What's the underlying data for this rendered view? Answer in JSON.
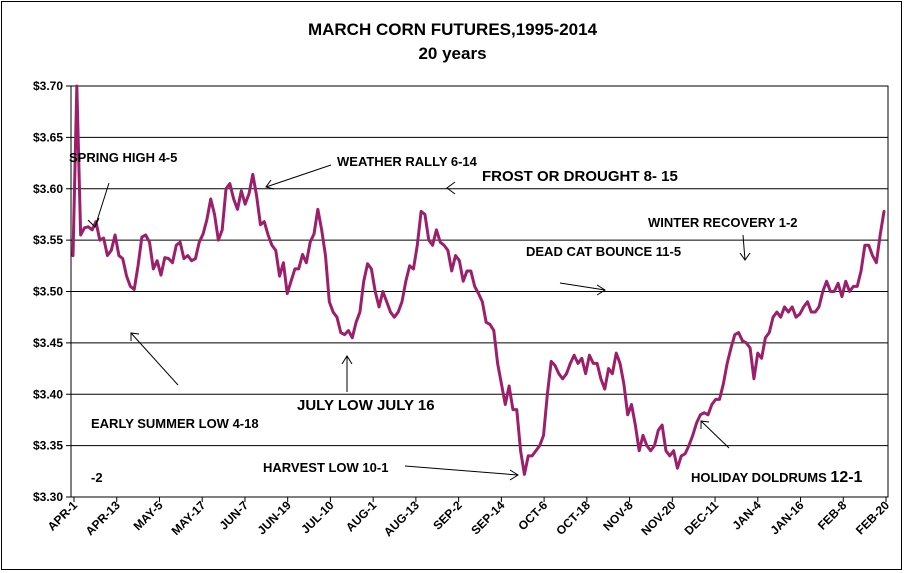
{
  "chart_data": {
    "type": "line",
    "title": "MARCH CORN FUTURES,1995-2014",
    "subtitle": "20 years",
    "ylim": [
      3.3,
      3.7
    ],
    "y_ticks": [
      "$3.30",
      "$3.35",
      "$3.40",
      "$3.45",
      "$3.50",
      "$3.55",
      "$3.60",
      "$3.65",
      "$3.70"
    ],
    "grid": "horizontal",
    "x_ticks": [
      "APR-1",
      "APR-13",
      "MAY-5",
      "MAY-17",
      "JUN-7",
      "JUN-19",
      "JUL-10",
      "AUG-1",
      "AUG-13",
      "SEP-2",
      "SEP-14",
      "OCT-6",
      "OCT-18",
      "NOV-8",
      "NOV-20",
      "DEC-11",
      "JAN-4",
      "JAN-16",
      "FEB-8",
      "FEB-20"
    ],
    "line_color": "#9c1f6b",
    "series": [
      {
        "values": [
          3.535,
          3.7,
          3.555,
          3.562,
          3.563,
          3.56,
          3.568,
          3.55,
          3.552,
          3.535,
          3.54,
          3.555,
          3.535,
          3.532,
          3.515,
          3.505,
          3.502,
          3.525,
          3.553,
          3.555,
          3.548,
          3.522,
          3.53,
          3.516,
          3.533,
          3.532,
          3.528,
          3.545,
          3.548,
          3.532,
          3.535,
          3.53,
          3.532,
          3.548,
          3.556,
          3.57,
          3.59,
          3.575,
          3.55,
          3.56,
          3.6,
          3.605,
          3.59,
          3.58,
          3.598,
          3.585,
          3.595,
          3.614,
          3.593,
          3.565,
          3.568,
          3.555,
          3.545,
          3.54,
          3.515,
          3.528,
          3.498,
          3.51,
          3.522,
          3.522,
          3.536,
          3.528,
          3.548,
          3.556,
          3.58,
          3.56,
          3.535,
          3.49,
          3.48,
          3.475,
          3.46,
          3.458,
          3.462,
          3.455,
          3.47,
          3.48,
          3.51,
          3.527,
          3.522,
          3.5,
          3.485,
          3.5,
          3.49,
          3.48,
          3.475,
          3.48,
          3.49,
          3.51,
          3.525,
          3.522,
          3.545,
          3.578,
          3.575,
          3.55,
          3.545,
          3.56,
          3.548,
          3.545,
          3.54,
          3.52,
          3.535,
          3.53,
          3.51,
          3.52,
          3.52,
          3.505,
          3.498,
          3.49,
          3.47,
          3.468,
          3.462,
          3.43,
          3.41,
          3.39,
          3.408,
          3.385,
          3.385,
          3.345,
          3.322,
          3.34,
          3.34,
          3.345,
          3.35,
          3.36,
          3.4,
          3.432,
          3.428,
          3.42,
          3.415,
          3.42,
          3.43,
          3.438,
          3.43,
          3.435,
          3.42,
          3.438,
          3.43,
          3.43,
          3.415,
          3.405,
          3.425,
          3.42,
          3.44,
          3.43,
          3.41,
          3.38,
          3.39,
          3.37,
          3.345,
          3.36,
          3.35,
          3.345,
          3.35,
          3.365,
          3.37,
          3.345,
          3.34,
          3.345,
          3.328,
          3.34,
          3.342,
          3.35,
          3.36,
          3.372,
          3.38,
          3.382,
          3.38,
          3.39,
          3.395,
          3.395,
          3.41,
          3.43,
          3.445,
          3.458,
          3.46,
          3.452,
          3.45,
          3.445,
          3.415,
          3.44,
          3.435,
          3.455,
          3.46,
          3.475,
          3.48,
          3.475,
          3.485,
          3.48,
          3.485,
          3.475,
          3.478,
          3.485,
          3.49,
          3.48,
          3.48,
          3.485,
          3.5,
          3.51,
          3.5,
          3.5,
          3.508,
          3.495,
          3.51,
          3.5,
          3.505,
          3.505,
          3.52,
          3.545,
          3.545,
          3.535,
          3.528,
          3.555,
          3.578
        ]
      }
    ],
    "annotations": {
      "spring_high": "SPRING HIGH 4-5",
      "weather_rally": "WEATHER RALLY 6-14",
      "frost_drought": "FROST  OR DROUGHT 8- 15",
      "winter_recovery": "WINTER RECOVERY 1-2",
      "dead_cat": "DEAD CAT BOUNCE 11-5",
      "july_low": "JULY LOW JULY 16",
      "early_summer_low": "EARLY SUMMER LOW 4-18",
      "minus_two": "-2",
      "harvest_low": "HARVEST LOW  10-1",
      "holiday_doldrums": "HOLIDAY  DOLDRUMS",
      "holiday_date": "12-1"
    }
  }
}
